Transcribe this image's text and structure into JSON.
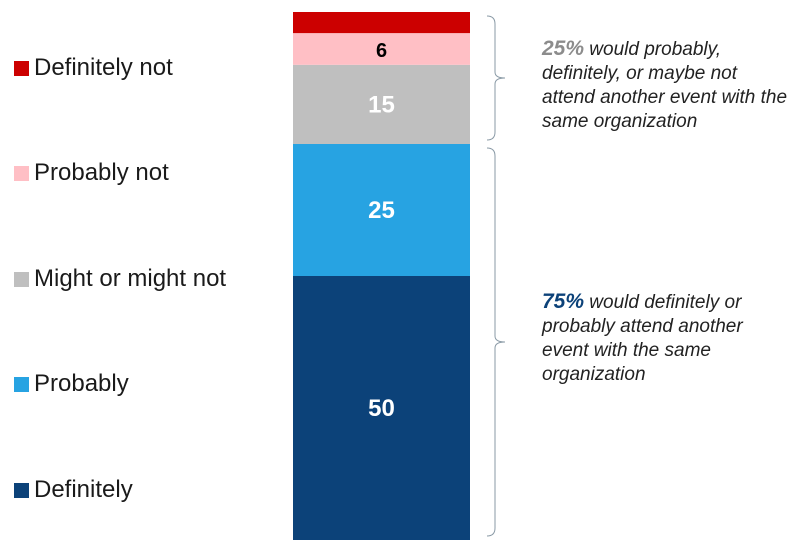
{
  "chart_data": {
    "type": "bar",
    "stacked": true,
    "series": [
      {
        "name": "Definitely",
        "value": 50,
        "label": "50",
        "color": "#0c4279",
        "label_color": "#ffffff"
      },
      {
        "name": "Probably",
        "value": 25,
        "label": "25",
        "color": "#27a3e2",
        "label_color": "#ffffff"
      },
      {
        "name": "Might or might not",
        "value": 15,
        "label": "15",
        "color": "#bfbfbf",
        "label_color": "#ffffff"
      },
      {
        "name": "Probably not",
        "value": 6,
        "label": "6",
        "color": "#ffbfc5",
        "label_color": "#000000"
      },
      {
        "name": "Definitely not",
        "value": 4,
        "label": "",
        "color": "#cc0000",
        "label_color": "#ffffff"
      }
    ],
    "total": 100,
    "legend_placement": "left",
    "legend_order": [
      "Definitely not",
      "Probably not",
      "Might or might not",
      "Probably",
      "Definitely"
    ],
    "annotations": [
      {
        "id": "negative",
        "pct": "25%",
        "text": " would probably, definitely, or maybe not attend another event with the same organization",
        "pct_color": "#8c8c8c",
        "brace_covers": [
          "Definitely not",
          "Probably not",
          "Might or might not"
        ]
      },
      {
        "id": "positive",
        "pct": "75%",
        "text": " would definitely or probably attend another event with the same organization",
        "pct_color": "#0c4279",
        "brace_covers": [
          "Probably",
          "Definitely"
        ]
      }
    ]
  }
}
